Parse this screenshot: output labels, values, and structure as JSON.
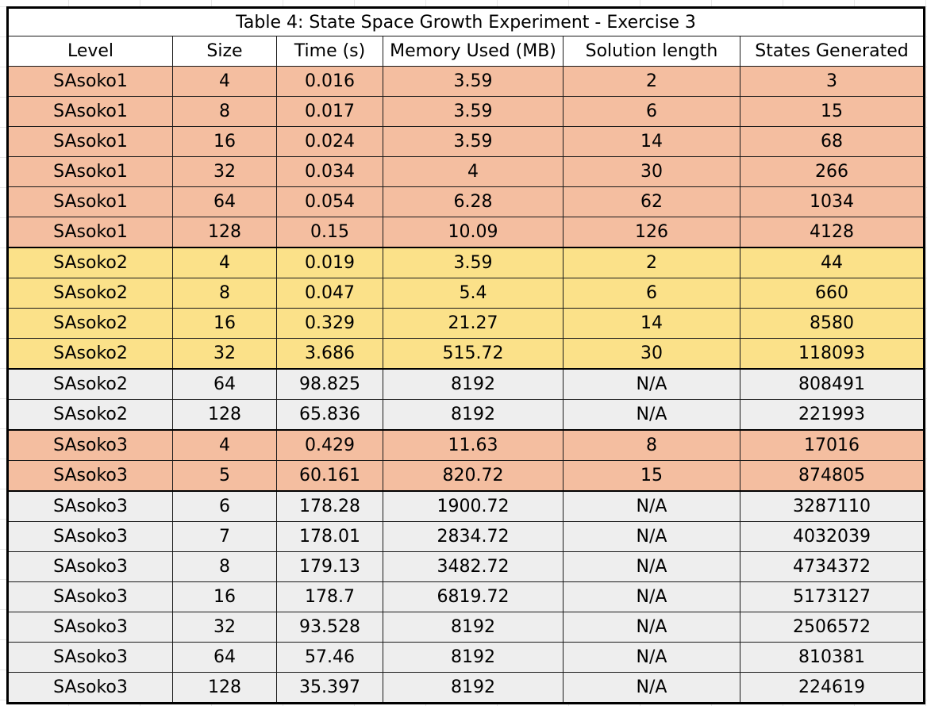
{
  "title": "Table 4: State Space Growth Experiment - Exercise 3",
  "columns": [
    "Level",
    "Size",
    "Time (s)",
    "Memory Used (MB)",
    "Solution length",
    "States Generated"
  ],
  "colors": {
    "salmon": "#f4bea0",
    "yellow": "#fbe189",
    "grey": "#eeeeee",
    "border": "#000000"
  },
  "rows": [
    {
      "band": "salmon",
      "cells": [
        "SAsoko1",
        "4",
        "0.016",
        "3.59",
        "2",
        "3"
      ]
    },
    {
      "band": "salmon",
      "cells": [
        "SAsoko1",
        "8",
        "0.017",
        "3.59",
        "6",
        "15"
      ]
    },
    {
      "band": "salmon",
      "cells": [
        "SAsoko1",
        "16",
        "0.024",
        "3.59",
        "14",
        "68"
      ]
    },
    {
      "band": "salmon",
      "cells": [
        "SAsoko1",
        "32",
        "0.034",
        "4",
        "30",
        "266"
      ]
    },
    {
      "band": "salmon",
      "cells": [
        "SAsoko1",
        "64",
        "0.054",
        "6.28",
        "62",
        "1034"
      ]
    },
    {
      "band": "salmon",
      "cells": [
        "SAsoko1",
        "128",
        "0.15",
        "10.09",
        "126",
        "4128"
      ]
    },
    {
      "band": "yellow",
      "cells": [
        "SAsoko2",
        "4",
        "0.019",
        "3.59",
        "2",
        "44"
      ]
    },
    {
      "band": "yellow",
      "cells": [
        "SAsoko2",
        "8",
        "0.047",
        "5.4",
        "6",
        "660"
      ]
    },
    {
      "band": "yellow",
      "cells": [
        "SAsoko2",
        "16",
        "0.329",
        "21.27",
        "14",
        "8580"
      ]
    },
    {
      "band": "yellow",
      "cells": [
        "SAsoko2",
        "32",
        "3.686",
        "515.72",
        "30",
        "118093"
      ]
    },
    {
      "band": "grey",
      "cells": [
        "SAsoko2",
        "64",
        "98.825",
        "8192",
        "N/A",
        "808491"
      ]
    },
    {
      "band": "grey",
      "cells": [
        "SAsoko2",
        "128",
        "65.836",
        "8192",
        "N/A",
        "221993"
      ]
    },
    {
      "band": "salmon",
      "cells": [
        "SAsoko3",
        "4",
        "0.429",
        "11.63",
        "8",
        "17016"
      ]
    },
    {
      "band": "salmon",
      "cells": [
        "SAsoko3",
        "5",
        "60.161",
        "820.72",
        "15",
        "874805"
      ]
    },
    {
      "band": "grey",
      "cells": [
        "SAsoko3",
        "6",
        "178.28",
        "1900.72",
        "N/A",
        "3287110"
      ]
    },
    {
      "band": "grey",
      "cells": [
        "SAsoko3",
        "7",
        "178.01",
        "2834.72",
        "N/A",
        "4032039"
      ]
    },
    {
      "band": "grey",
      "cells": [
        "SAsoko3",
        "8",
        "179.13",
        "3482.72",
        "N/A",
        "4734372"
      ]
    },
    {
      "band": "grey",
      "cells": [
        "SAsoko3",
        "16",
        "178.7",
        "6819.72",
        "N/A",
        "5173127"
      ]
    },
    {
      "band": "grey",
      "cells": [
        "SAsoko3",
        "32",
        "93.528",
        "8192",
        "N/A",
        "2506572"
      ]
    },
    {
      "band": "grey",
      "cells": [
        "SAsoko3",
        "64",
        "57.46",
        "8192",
        "N/A",
        "810381"
      ]
    },
    {
      "band": "grey",
      "cells": [
        "SAsoko3",
        "128",
        "35.397",
        "8192",
        "N/A",
        "224619"
      ]
    }
  ]
}
